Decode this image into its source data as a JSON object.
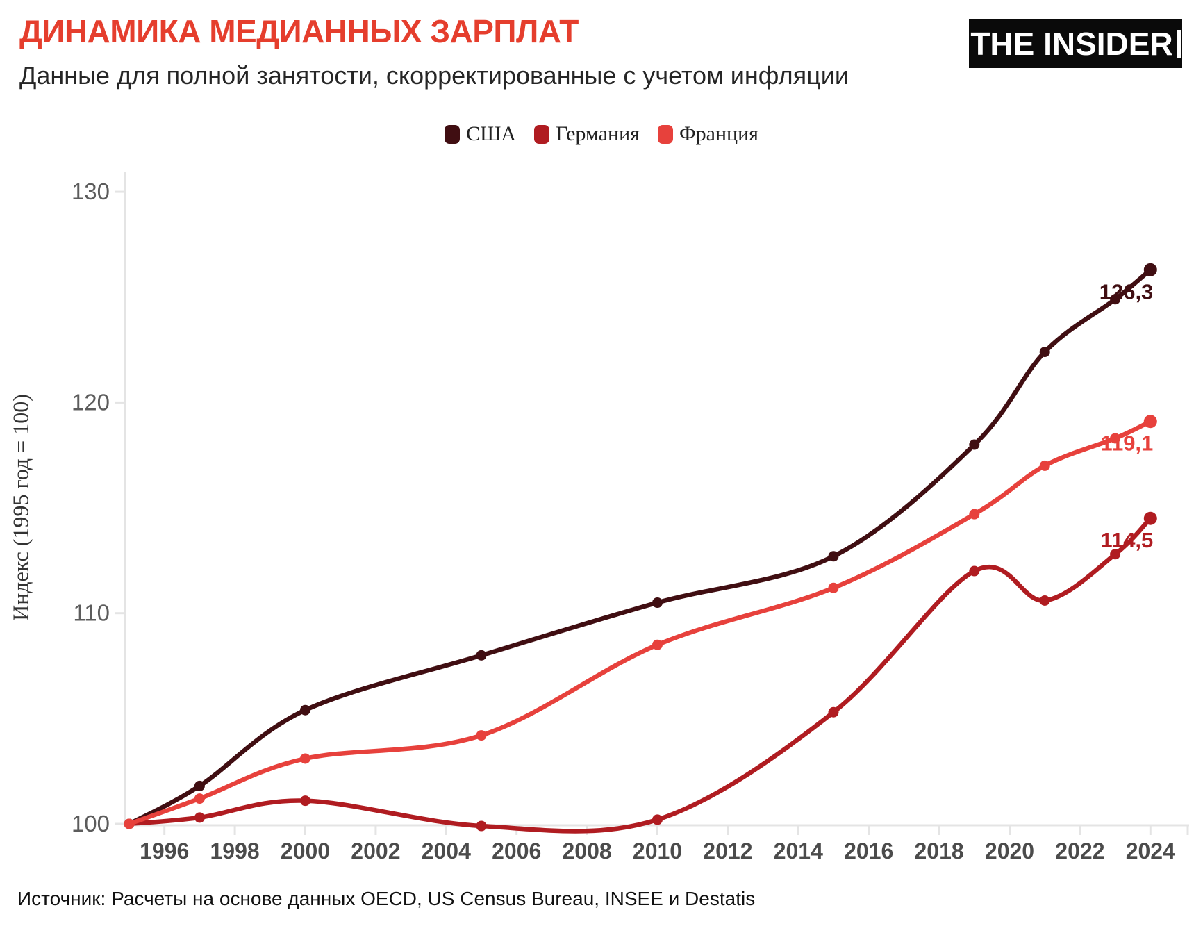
{
  "header": {
    "title": "ДИНАМИКА МЕДИАННЫХ ЗАРПЛАТ",
    "subtitle": "Данные для полной занятости, скорректированные с учетом инфляции",
    "logo": "THE INSIDER"
  },
  "legend": [
    {
      "label": "США",
      "color": "#400e12"
    },
    {
      "label": "Германия",
      "color": "#b01c21"
    },
    {
      "label": "Франция",
      "color": "#e7413c"
    }
  ],
  "chart_data": {
    "type": "line",
    "title": "ДИНАМИКА МЕДИАННЫХ ЗАРПЛАТ",
    "subtitle": "Данные для полной занятости, скорректированные с учетом инфляции",
    "xlabel": "",
    "ylabel": "Индекс (1995 год = 100)",
    "x": [
      1995,
      1997,
      2000,
      2005,
      2010,
      2015,
      2019,
      2021,
      2023,
      2024
    ],
    "series": [
      {
        "name": "США",
        "color": "#400e12",
        "values": [
          100,
          101.8,
          105.4,
          108.0,
          110.5,
          112.7,
          118.0,
          122.4,
          124.9,
          126.3
        ],
        "end_label": "126,3"
      },
      {
        "name": "Германия",
        "color": "#b01c21",
        "values": [
          100,
          100.3,
          101.1,
          99.9,
          100.2,
          105.3,
          112.0,
          110.6,
          112.8,
          114.5
        ],
        "end_label": "114,5"
      },
      {
        "name": "Франция",
        "color": "#e7413c",
        "values": [
          100,
          101.2,
          103.1,
          104.2,
          108.5,
          111.2,
          114.7,
          117.0,
          118.3,
          119.1
        ],
        "end_label": "119,1"
      }
    ],
    "x_ticks": [
      1996,
      1998,
      2000,
      2002,
      2004,
      2006,
      2008,
      2010,
      2012,
      2014,
      2016,
      2018,
      2020,
      2022,
      2024
    ],
    "y_ticks": [
      100,
      110,
      120,
      130
    ],
    "xlim": [
      1995,
      2024
    ],
    "ylim": [
      100,
      130
    ],
    "grid": false,
    "legend_position": "top"
  },
  "source": "Источник: Расчеты на основе данных OECD, US Census Bureau, INSEE и Destatis",
  "colors": {
    "title": "#e53e2d",
    "axis_line": "#e4e4e4",
    "x_tick_label": "#4b4b4b",
    "y_tick_label": "#5c5c5c"
  }
}
